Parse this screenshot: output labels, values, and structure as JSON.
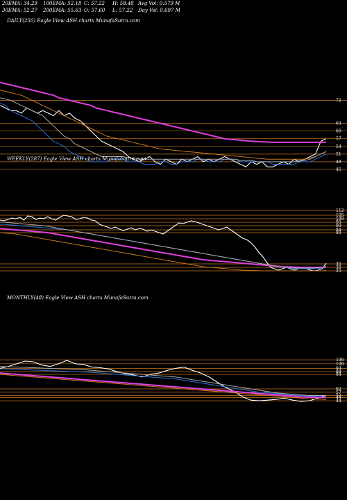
{
  "header": {
    "row1": [
      {
        "label": "20EMA: 34.29"
      },
      {
        "label": "100EMA: 52.18"
      },
      {
        "label": "C: 57.22"
      },
      {
        "label": "H: 58.48"
      },
      {
        "label": "Avg Vol: 0.579 M"
      }
    ],
    "row2": [
      {
        "label": "30EMA: 52.27"
      },
      {
        "label": "200EMA: 55.63"
      },
      {
        "label": "O: 57.60"
      },
      {
        "label": "L: 57.22"
      },
      {
        "label": "Day Vol: 0.697 M"
      }
    ]
  },
  "colors": {
    "background": "#000000",
    "price": "#ffffff",
    "ema_blue": "#2a6fe0",
    "ema_magenta": "#e040e0",
    "ema_orange": "#c8781e",
    "ema_gray": "#aaaaaa",
    "level_line": "#c8781e"
  },
  "chart_data": [
    {
      "type": "line",
      "title": "DAILY(250) Eagle   View  ASH charts MunafaSutra.com",
      "ylim": [
        42,
        80
      ],
      "levels": [
        72,
        63,
        60,
        57,
        54,
        51,
        48,
        45
      ],
      "series": [
        {
          "name": "price",
          "color": "#ffffff",
          "values": [
            70,
            69,
            68,
            68,
            67,
            69,
            68,
            67,
            68,
            67,
            66,
            68,
            66,
            67,
            65,
            64,
            62,
            60,
            58,
            56,
            55,
            54,
            53,
            52,
            50,
            49,
            48,
            49,
            50,
            48,
            47,
            49,
            48,
            47,
            49,
            48,
            49,
            50,
            48,
            49,
            48,
            49,
            50,
            49,
            48,
            47,
            46,
            48,
            47,
            48,
            46,
            46,
            47,
            48,
            47,
            49,
            48,
            49,
            50,
            51,
            56,
            57
          ]
        },
        {
          "name": "ema-blue",
          "color": "#2a6fe0",
          "values": [
            71,
            70,
            68,
            67,
            66,
            65,
            64,
            62,
            60,
            58,
            56,
            55,
            54,
            52,
            51,
            50,
            49,
            48,
            48,
            48,
            48,
            49,
            49,
            49,
            48,
            48,
            48,
            47,
            47,
            47,
            48,
            48,
            47,
            47,
            48,
            48,
            48,
            49,
            49,
            48,
            48,
            48,
            49,
            49,
            49,
            48,
            48,
            48,
            48,
            48,
            48,
            47,
            47,
            47,
            47,
            47,
            48,
            48,
            48,
            49,
            50,
            51
          ]
        },
        {
          "name": "ema-magenta",
          "color": "#e040e0",
          "values": [
            79,
            78.5,
            78,
            77.5,
            77,
            76.5,
            76,
            75.5,
            75,
            74.5,
            74,
            73,
            72.5,
            72,
            71.5,
            71,
            70.5,
            70,
            69,
            68.5,
            68,
            67.5,
            67,
            66.5,
            66,
            65.5,
            65,
            64.5,
            64,
            63.5,
            63,
            62.5,
            62,
            61.5,
            61,
            60.5,
            60,
            59.5,
            59,
            58.5,
            58,
            57.5,
            57,
            56.8,
            56.6,
            56.4,
            56.2,
            56,
            55.9,
            55.8,
            55.7,
            55.6,
            55.6,
            55.6,
            55.6,
            55.6,
            55.6,
            55.6,
            55.6,
            55.6,
            55.6,
            55.6
          ]
        },
        {
          "name": "ema-orange",
          "color": "#c8781e",
          "values": [
            76,
            75.5,
            75,
            74.5,
            74,
            73,
            72,
            71,
            70,
            69,
            68,
            67,
            66,
            65,
            64,
            63,
            62,
            61,
            60,
            59,
            58,
            57.5,
            57,
            56.5,
            56,
            55.5,
            55,
            54.5,
            54,
            53.5,
            53,
            52.8,
            52.6,
            52.4,
            52.2,
            52,
            51.8,
            51.6,
            51.4,
            51.2,
            51,
            50.8,
            50.6,
            50.4,
            50.2,
            50,
            49.8,
            49.6,
            49.4,
            49.2,
            49,
            49,
            49,
            49,
            49,
            49,
            49,
            49,
            49.5,
            50,
            51,
            52
          ]
        },
        {
          "name": "ema-gray",
          "color": "#aaaaaa",
          "values": [
            73,
            72.5,
            72,
            71,
            70,
            69,
            68,
            67,
            66,
            64,
            62,
            60,
            58,
            57,
            55,
            54,
            53,
            52,
            51,
            50,
            50,
            50,
            50,
            50,
            49.5,
            49.5,
            49,
            49,
            49,
            49,
            49,
            49,
            49,
            49,
            49,
            49,
            49,
            49,
            49,
            49,
            49,
            49,
            49,
            49,
            49,
            48.5,
            48.5,
            48.5,
            48,
            48,
            48,
            48,
            48,
            48,
            48,
            48,
            48.5,
            48.5,
            49,
            50,
            51,
            52
          ]
        }
      ]
    },
    {
      "type": "line",
      "title": "WEEKLY(287) Eagle   View  ASH charts MunafaSutra.com",
      "ylim": [
        20,
        125
      ],
      "levels": [
        112,
        105,
        100,
        95,
        90,
        84,
        80,
        35,
        30,
        25
      ],
      "series": [
        {
          "name": "price",
          "color": "#ffffff",
          "values": [
            98,
            97,
            99,
            101,
            100,
            102,
            98,
            104,
            103,
            99,
            101,
            100,
            103,
            100,
            98,
            102,
            105,
            104,
            103,
            99,
            100,
            102,
            101,
            98,
            97,
            92,
            90,
            88,
            86,
            88,
            85,
            83,
            85,
            87,
            84,
            86,
            85,
            82,
            84,
            82,
            80,
            78,
            82,
            86,
            90,
            94,
            93,
            95,
            97,
            96,
            94,
            92,
            90,
            88,
            86,
            84,
            86,
            88,
            84,
            80,
            76,
            72,
            70,
            66,
            60,
            52,
            46,
            38,
            30,
            28,
            26,
            28,
            30,
            28,
            26,
            28,
            30,
            28,
            26,
            25,
            26,
            28,
            36
          ]
        },
        {
          "name": "ema-blue",
          "color": "#2a6fe0",
          "values": [
            92,
            92,
            91.5,
            91,
            90.5,
            90,
            89.5,
            89,
            88.5,
            88,
            87.5,
            87,
            86.5,
            86,
            85.5,
            85,
            84.5,
            84,
            83,
            82,
            81,
            80,
            79,
            78,
            77,
            76,
            75,
            74,
            73,
            72,
            71,
            70,
            69,
            68,
            67,
            66,
            65,
            64,
            63,
            62,
            61,
            60,
            59,
            58,
            57,
            56,
            55,
            54,
            53,
            52,
            51,
            50,
            49,
            48,
            47,
            46,
            45,
            44,
            43,
            42,
            41,
            40,
            39,
            38,
            37,
            36,
            35,
            34,
            33,
            32,
            31,
            30,
            29.5,
            29,
            28.5,
            28,
            28,
            28,
            28,
            28,
            28.5,
            29,
            30
          ]
        },
        {
          "name": "ema-magenta",
          "color": "#e040e0",
          "values": [
            86,
            85.5,
            85,
            84.5,
            84,
            83.5,
            83,
            82.5,
            82,
            81.5,
            81,
            80.5,
            80,
            79,
            78,
            77,
            76,
            75,
            74,
            73,
            72,
            71,
            70,
            69,
            68,
            67,
            66,
            65,
            64,
            63,
            62,
            61,
            60,
            59,
            58,
            57,
            56,
            55,
            54,
            53,
            52,
            51,
            50,
            49,
            48,
            47,
            46,
            45,
            44,
            43,
            42,
            41,
            40.5,
            40,
            39.5,
            39,
            38.5,
            38,
            37.5,
            37,
            36.5,
            36,
            35.5,
            35,
            34.5,
            34,
            33.5,
            33,
            32.5,
            32,
            31.5,
            31,
            30.8,
            30.6,
            30.4,
            30.2,
            30,
            30,
            30,
            30,
            30,
            30,
            30.5
          ]
        },
        {
          "name": "ema-orange",
          "color": "#c8781e",
          "values": [
            80,
            79.5,
            79,
            78.5,
            78,
            77,
            76,
            75,
            74,
            73,
            72,
            71,
            70,
            69,
            68,
            67,
            66,
            65,
            64,
            63,
            62,
            61,
            60,
            59,
            58,
            57,
            56,
            55,
            54,
            53,
            52,
            51,
            50,
            49,
            48,
            47,
            46,
            45,
            44,
            43,
            42,
            41,
            40,
            39,
            38,
            37,
            36,
            35,
            34,
            33,
            32,
            31,
            30.5,
            30,
            29.5,
            29,
            28.5,
            28,
            27.5,
            27,
            26.5,
            26,
            25.8,
            25.6,
            25.4,
            25.2,
            25,
            25,
            25,
            25,
            25,
            25,
            25,
            25,
            25,
            25,
            25,
            25,
            25,
            25,
            25,
            25,
            25.5
          ]
        },
        {
          "name": "ema-gray",
          "color": "#aaaaaa",
          "values": [
            95,
            95,
            94.5,
            94,
            93.5,
            93,
            92.5,
            92,
            91.5,
            91,
            90.5,
            90,
            89,
            88,
            87,
            86,
            85,
            84,
            83,
            82,
            81,
            80,
            79,
            78,
            77,
            76,
            75,
            74,
            73,
            72,
            71,
            70,
            69,
            68,
            67,
            66,
            65,
            64,
            63,
            62,
            61,
            60,
            59,
            58,
            57,
            56,
            55,
            54,
            53,
            52,
            51,
            50,
            49,
            48,
            47,
            46,
            45,
            44,
            43,
            42,
            41,
            40,
            39,
            38,
            37,
            36,
            35,
            34,
            33,
            32,
            31,
            30,
            30,
            29.5,
            29,
            29,
            29,
            29,
            29,
            29,
            29.5,
            30,
            31
          ]
        }
      ]
    },
    {
      "type": "line",
      "title": "MONTHLY(48) Eagle   View  ASH charts MunafaSutra.com",
      "ylim": [
        20,
        125
      ],
      "levels": [
        106,
        100,
        93,
        88,
        84,
        62,
        57,
        52,
        49,
        44
      ],
      "series": [
        {
          "name": "price",
          "color": "#ffffff",
          "values": [
            93,
            96,
            100,
            104,
            103,
            98,
            96,
            100,
            105,
            100,
            99,
            95,
            94,
            92,
            88,
            85,
            83,
            80,
            84,
            86,
            90,
            93,
            95,
            90,
            86,
            80,
            72,
            64,
            58,
            50,
            45,
            44,
            45,
            46,
            48,
            45,
            43,
            44,
            48,
            52
          ]
        },
        {
          "name": "ema-blue",
          "color": "#2a6fe0",
          "values": [
            92,
            92,
            91.5,
            91,
            90.5,
            90,
            89.5,
            89,
            88.5,
            88,
            87.5,
            87,
            86,
            85,
            84,
            83,
            82,
            81,
            80,
            79,
            78,
            77,
            75,
            73,
            71,
            69,
            67,
            65,
            63,
            61,
            59,
            57,
            56,
            55,
            54,
            53,
            52,
            51,
            51,
            52
          ]
        },
        {
          "name": "ema-magenta",
          "color": "#e040e0",
          "values": [
            86,
            85,
            84,
            83,
            82,
            81,
            80,
            79,
            78,
            77,
            76,
            75,
            74,
            73,
            72,
            71,
            70,
            69,
            68,
            67,
            66,
            65,
            64,
            63,
            62,
            61,
            60,
            59,
            58,
            57,
            56,
            55,
            54,
            53,
            52,
            51,
            50,
            49.5,
            49,
            49
          ]
        },
        {
          "name": "ema-orange",
          "color": "#c8781e",
          "values": [
            84,
            83,
            82,
            81,
            80,
            79,
            78,
            77,
            76,
            75,
            74,
            73,
            72,
            71,
            70,
            69,
            68,
            67,
            66,
            65,
            64,
            63,
            62,
            61,
            60,
            59,
            58,
            57,
            56,
            55,
            54,
            53,
            52,
            51,
            50,
            49,
            48,
            47,
            46.5,
            46
          ]
        },
        {
          "name": "ema-gray",
          "color": "#aaaaaa",
          "values": [
            96,
            95.5,
            95,
            94.5,
            94,
            93.5,
            93,
            92.5,
            92,
            91.5,
            91,
            90,
            89,
            88,
            87,
            86,
            85,
            84,
            83,
            82,
            81,
            80,
            78,
            76,
            74,
            72,
            70,
            68,
            66,
            64,
            62,
            60,
            58,
            56,
            55,
            54,
            53,
            52,
            52,
            52
          ]
        }
      ]
    }
  ]
}
